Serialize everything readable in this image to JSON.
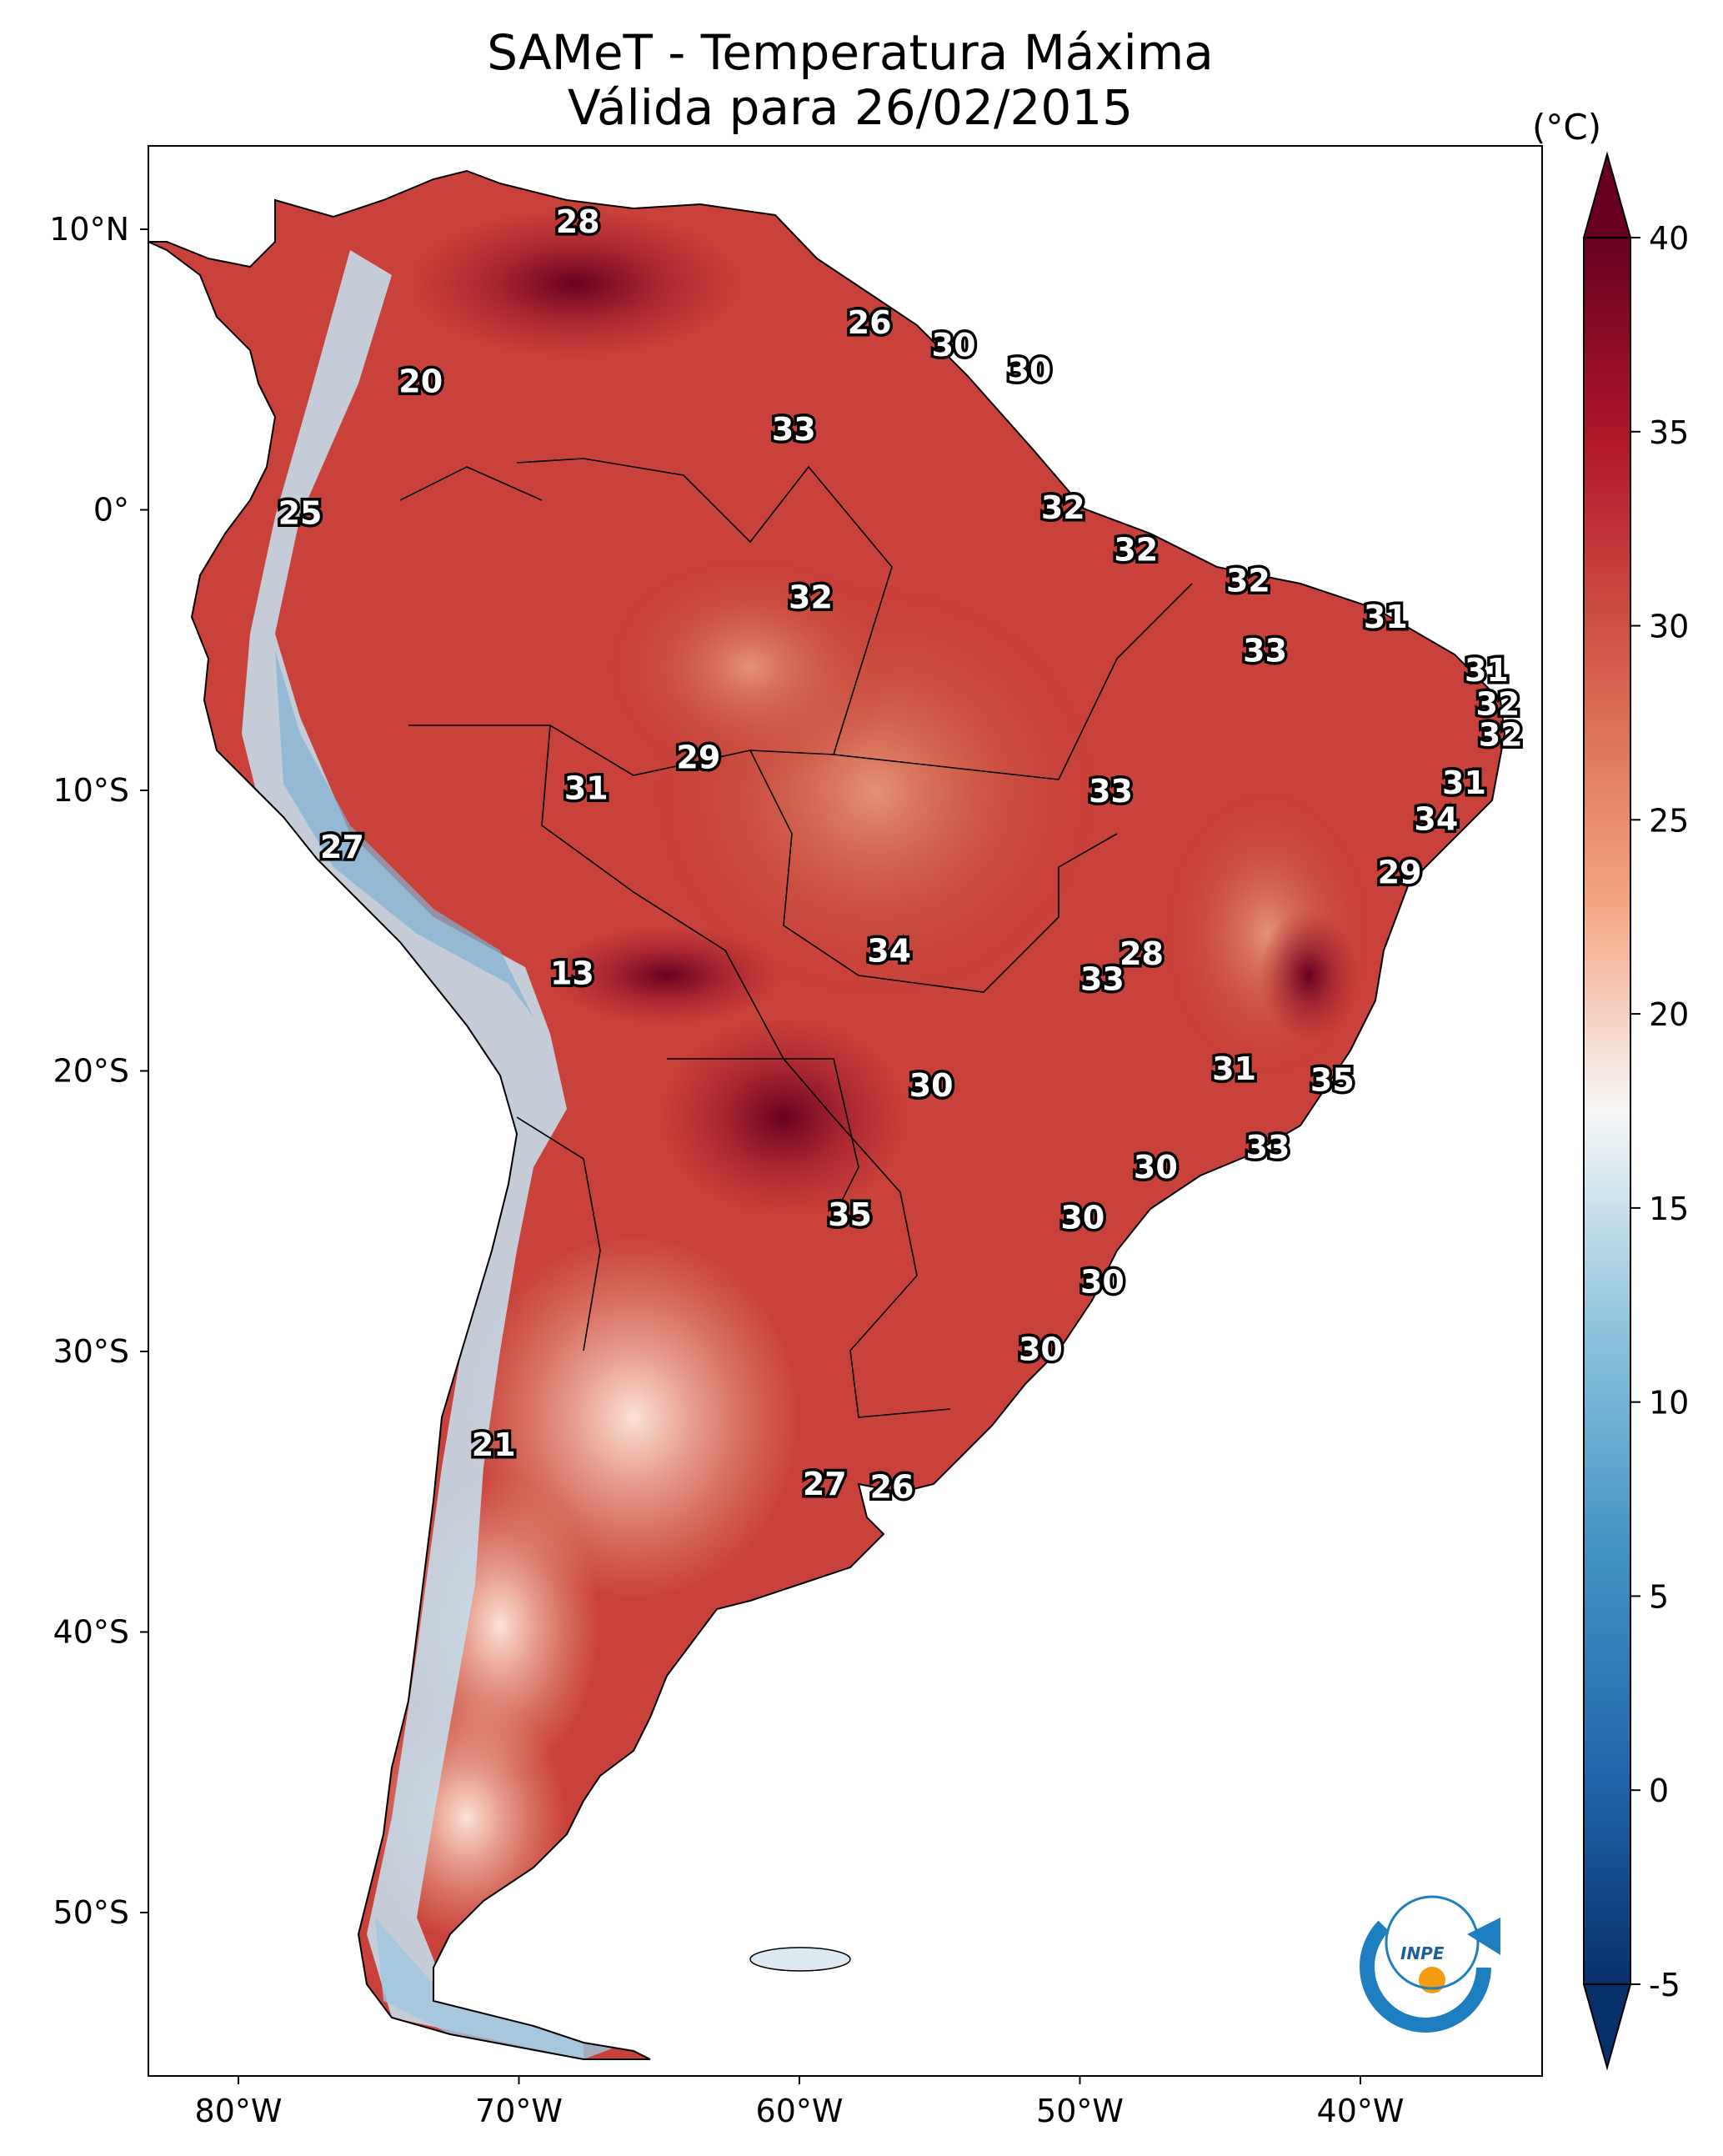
{
  "title": {
    "line1": "SAMeT - Temperatura Máxima",
    "line2": "Válida para 26/02/2015"
  },
  "colorbar": {
    "unit": "(°C)",
    "min": -5,
    "max": 40,
    "ticks": [
      "40",
      "35",
      "30",
      "25",
      "20",
      "15",
      "10",
      "5",
      "0",
      "-5"
    ],
    "colors": {
      "cold": "#08306b",
      "cool": "#4393c3",
      "neutral": "#f7f7f7",
      "warm": "#f4a582",
      "hot": "#b2182b",
      "hottest": "#67001f"
    }
  },
  "axes": {
    "lat_labels": [
      "10°N",
      "0°",
      "10°S",
      "20°S",
      "30°S",
      "40°S",
      "50°S"
    ],
    "lon_labels": [
      "80°W",
      "70°W",
      "60°W",
      "50°W",
      "40°W"
    ]
  },
  "map_labels": [
    {
      "text": "28",
      "lon": -67.9,
      "lat": 10.2
    },
    {
      "text": "20",
      "lon": -73.5,
      "lat": 4.5
    },
    {
      "text": "26",
      "lon": -57.5,
      "lat": 6.6
    },
    {
      "text": "30",
      "lon": -54.5,
      "lat": 5.8
    },
    {
      "text": "30",
      "lon": -51.8,
      "lat": 4.9
    },
    {
      "text": "33",
      "lon": -60.2,
      "lat": 2.8
    },
    {
      "text": "25",
      "lon": -77.8,
      "lat": -0.2
    },
    {
      "text": "32",
      "lon": -50.6,
      "lat": 0.0
    },
    {
      "text": "32",
      "lon": -48.0,
      "lat": -1.5
    },
    {
      "text": "32",
      "lon": -59.6,
      "lat": -3.2
    },
    {
      "text": "32",
      "lon": -44.0,
      "lat": -2.6
    },
    {
      "text": "31",
      "lon": -39.1,
      "lat": -3.9
    },
    {
      "text": "33",
      "lon": -43.4,
      "lat": -5.1
    },
    {
      "text": "31",
      "lon": -35.5,
      "lat": -5.8
    },
    {
      "text": "32",
      "lon": -35.1,
      "lat": -7.0
    },
    {
      "text": "32",
      "lon": -35.0,
      "lat": -8.1
    },
    {
      "text": "29",
      "lon": -63.6,
      "lat": -8.9
    },
    {
      "text": "31",
      "lon": -67.6,
      "lat": -10.0
    },
    {
      "text": "33",
      "lon": -48.9,
      "lat": -10.1
    },
    {
      "text": "31",
      "lon": -36.3,
      "lat": -9.8
    },
    {
      "text": "34",
      "lon": -37.3,
      "lat": -11.1
    },
    {
      "text": "27",
      "lon": -76.3,
      "lat": -12.1
    },
    {
      "text": "29",
      "lon": -38.6,
      "lat": -13.0
    },
    {
      "text": "34",
      "lon": -56.8,
      "lat": -15.8
    },
    {
      "text": "28",
      "lon": -47.8,
      "lat": -15.9
    },
    {
      "text": "33",
      "lon": -49.2,
      "lat": -16.8
    },
    {
      "text": "13",
      "lon": -68.1,
      "lat": -16.6
    },
    {
      "text": "31",
      "lon": -44.5,
      "lat": -20.0
    },
    {
      "text": "35",
      "lon": -41.0,
      "lat": -20.4
    },
    {
      "text": "30",
      "lon": -55.3,
      "lat": -20.6
    },
    {
      "text": "33",
      "lon": -43.3,
      "lat": -22.8
    },
    {
      "text": "30",
      "lon": -47.3,
      "lat": -23.5
    },
    {
      "text": "35",
      "lon": -58.2,
      "lat": -25.2
    },
    {
      "text": "30",
      "lon": -49.9,
      "lat": -25.3
    },
    {
      "text": "30",
      "lon": -49.2,
      "lat": -27.6
    },
    {
      "text": "30",
      "lon": -51.4,
      "lat": -30.0
    },
    {
      "text": "21",
      "lon": -70.9,
      "lat": -33.4
    },
    {
      "text": "27",
      "lon": -59.1,
      "lat": -34.8
    },
    {
      "text": "26",
      "lon": -56.7,
      "lat": -34.9
    }
  ],
  "logo": {
    "text": "INPE"
  }
}
